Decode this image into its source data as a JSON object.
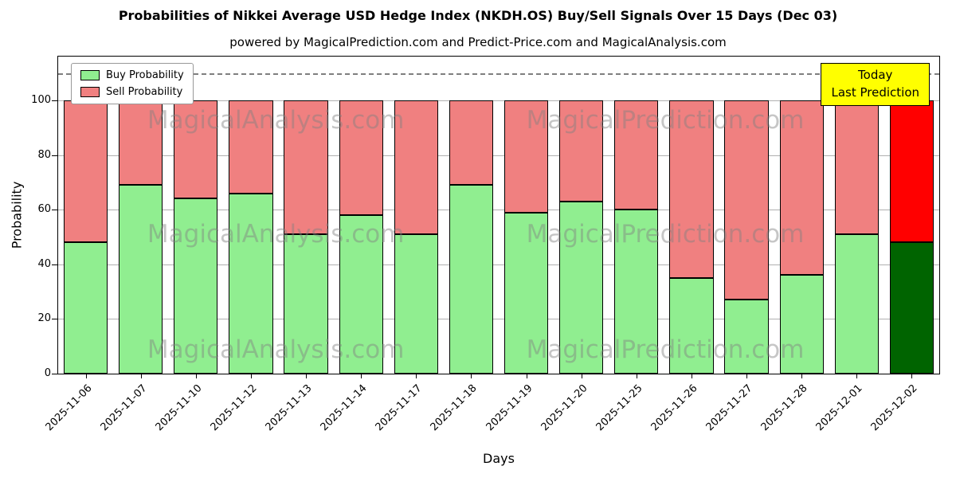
{
  "watermarks": {
    "left": "MagicalAnalysis.com",
    "right": "MagicalPrediction.com"
  },
  "annotation_box": {
    "line1": "Today",
    "line2": "Last Prediction",
    "bg_color": "#ffff00"
  },
  "chart_data": {
    "type": "bar",
    "stacked": true,
    "title": "Probabilities of Nikkei Average USD Hedge Index (NKDH.OS) Buy/Sell Signals Over 15 Days (Dec 03)",
    "subtitle": "powered by MagicalPrediction.com and Predict-Price.com and MagicalAnalysis.com",
    "xlabel": "Days",
    "ylabel": "Probability",
    "ylim": [
      0,
      116
    ],
    "yticks": [
      0,
      20,
      40,
      60,
      80,
      100
    ],
    "dashed_line_y": 110,
    "grid": true,
    "legend_position": "upper left",
    "categories": [
      "2025-11-06",
      "2025-11-07",
      "2025-11-10",
      "2025-11-12",
      "2025-11-13",
      "2025-11-14",
      "2025-11-17",
      "2025-11-18",
      "2025-11-19",
      "2025-11-20",
      "2025-11-25",
      "2025-11-26",
      "2025-11-27",
      "2025-11-28",
      "2025-12-01",
      "2025-12-02"
    ],
    "series": [
      {
        "name": "Buy Probability",
        "color": "#90ee90",
        "values": [
          48,
          69,
          64,
          66,
          51,
          58,
          51,
          69,
          59,
          63,
          60,
          35,
          27,
          36,
          51,
          48
        ]
      },
      {
        "name": "Sell Probability",
        "color": "#f08080",
        "values": [
          52,
          31,
          36,
          34,
          49,
          42,
          49,
          31,
          41,
          37,
          40,
          65,
          73,
          64,
          49,
          52
        ]
      }
    ],
    "today_bar": {
      "index": 15,
      "buy_color": "#006400",
      "sell_color": "#ff0000"
    }
  }
}
